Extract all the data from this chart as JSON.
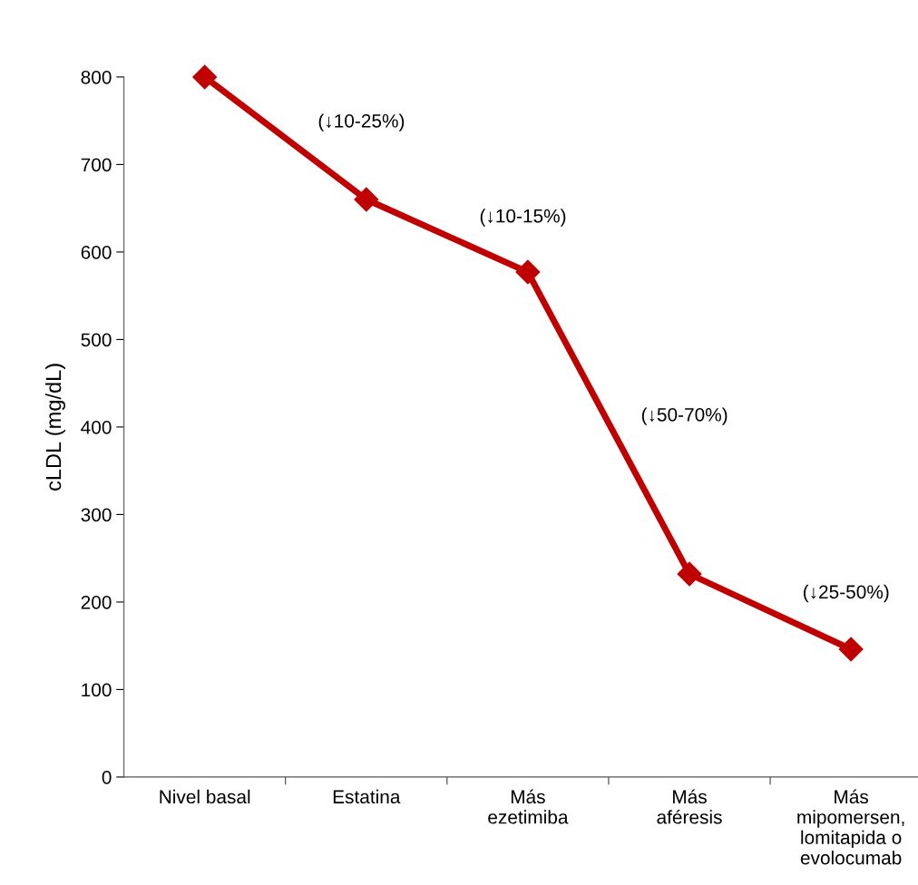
{
  "chart_data": {
    "type": "line",
    "ylabel": "cLDL (mg/dL)",
    "categories": [
      "Nivel basal",
      "Estatina",
      "Más\nezetimiba",
      "Más\naféresis",
      "Más\nmipomersen,\nlomitapida o\nevolocumab"
    ],
    "series": [
      {
        "color": "#c00000",
        "values": [
          800,
          660,
          577,
          232,
          146
        ]
      }
    ],
    "ylim": [
      0,
      800
    ],
    "yticks": [
      0,
      100,
      200,
      300,
      400,
      500,
      600,
      700,
      800
    ],
    "marker": "diamond",
    "line_style": "solid",
    "grid": false,
    "legend": false,
    "annotations": [
      "(↓10-25%)",
      "(↓10-15%)",
      "(↓50-70%)",
      "(↓25-50%)"
    ]
  }
}
